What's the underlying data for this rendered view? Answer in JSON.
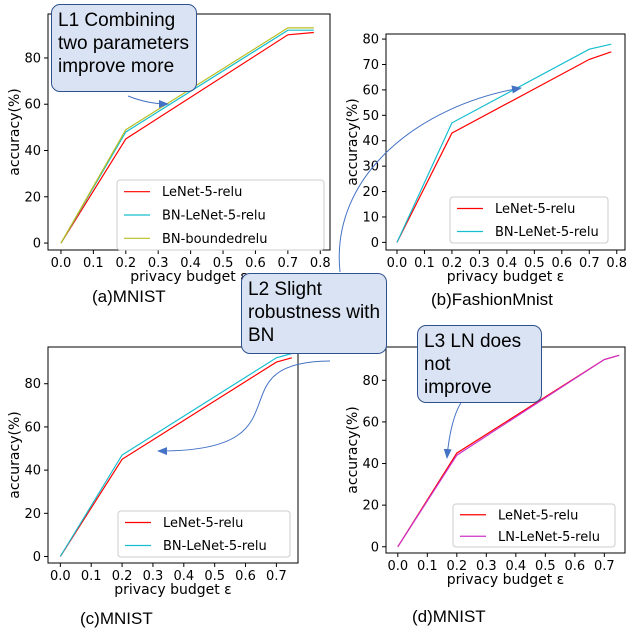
{
  "chart_data": [
    {
      "type": "line",
      "xlabel": "privacy budget ε",
      "ylabel": "accuracy(%)",
      "caption": "(a)MNIST",
      "xlim": [
        -0.04,
        0.83
      ],
      "ylim": [
        -3,
        99
      ],
      "xticks": [
        0.0,
        0.1,
        0.2,
        0.3,
        0.4,
        0.5,
        0.6,
        0.7,
        0.8
      ],
      "xtick_labels": [
        "0.0",
        "0.1",
        "0.2",
        "0.3",
        "0.4",
        "0.5",
        "0.6",
        "0.7",
        "0.8"
      ],
      "yticks": [
        0,
        20,
        40,
        60,
        80
      ],
      "ytick_labels": [
        "0",
        "20",
        "40",
        "60",
        "80"
      ],
      "legend": "bottom-right",
      "series": [
        {
          "name": "LeNet-5-relu",
          "color": "#ff0000",
          "x": [
            0.0,
            0.2,
            0.7,
            0.78
          ],
          "y": [
            0,
            45,
            90,
            91
          ]
        },
        {
          "name": "BN-LeNet-5-relu",
          "color": "#17becf",
          "x": [
            0.0,
            0.2,
            0.7,
            0.78
          ],
          "y": [
            0,
            48,
            92,
            92
          ]
        },
        {
          "name": "BN-boundedrelu",
          "color": "#bcbd22",
          "x": [
            0.0,
            0.2,
            0.7,
            0.78
          ],
          "y": [
            0,
            49,
            93,
            93
          ]
        }
      ]
    },
    {
      "type": "line",
      "xlabel": "privacy budget ε",
      "ylabel": "accuracy(%)",
      "caption": "(b)FashionMnist",
      "xlim": [
        -0.04,
        0.83
      ],
      "ylim": [
        -3,
        82
      ],
      "xticks": [
        0.0,
        0.1,
        0.2,
        0.3,
        0.4,
        0.5,
        0.6,
        0.7,
        0.8
      ],
      "xtick_labels": [
        "0.0",
        "0.1",
        "0.2",
        "0.3",
        "0.4",
        "0.5",
        "0.6",
        "0.7",
        "0.8"
      ],
      "yticks": [
        0,
        10,
        20,
        30,
        40,
        50,
        60,
        70,
        80
      ],
      "ytick_labels": [
        "0",
        "10",
        "20",
        "30",
        "40",
        "50",
        "60",
        "70",
        "80"
      ],
      "legend": "bottom-right",
      "series": [
        {
          "name": "LeNet-5-relu",
          "color": "#ff0000",
          "x": [
            0.0,
            0.2,
            0.7,
            0.78
          ],
          "y": [
            0,
            43,
            72,
            75
          ]
        },
        {
          "name": "BN-LeNet-5-relu",
          "color": "#17becf",
          "x": [
            0.0,
            0.2,
            0.7,
            0.78
          ],
          "y": [
            0,
            47,
            76,
            78
          ]
        }
      ]
    },
    {
      "type": "line",
      "xlabel": "privacy budget ε",
      "ylabel": "accuracy(%)",
      "caption": "(c)MNIST",
      "xlim": [
        -0.04,
        0.77
      ],
      "ylim": [
        -3,
        97
      ],
      "xticks": [
        0.0,
        0.1,
        0.2,
        0.3,
        0.4,
        0.5,
        0.6,
        0.7
      ],
      "xtick_labels": [
        "0.0",
        "0.1",
        "0.2",
        "0.3",
        "0.4",
        "0.5",
        "0.6",
        "0.7"
      ],
      "yticks": [
        0,
        20,
        40,
        60,
        80
      ],
      "ytick_labels": [
        "0",
        "20",
        "40",
        "60",
        "80"
      ],
      "legend": "bottom-right",
      "series": [
        {
          "name": "LeNet-5-relu",
          "color": "#ff0000",
          "x": [
            0.0,
            0.2,
            0.7,
            0.75
          ],
          "y": [
            0,
            45,
            90,
            92
          ]
        },
        {
          "name": "BN-LeNet-5-relu",
          "color": "#17becf",
          "x": [
            0.0,
            0.2,
            0.7,
            0.75
          ],
          "y": [
            0,
            47,
            92,
            94
          ]
        }
      ]
    },
    {
      "type": "line",
      "xlabel": "privacy budget ε",
      "ylabel": "accuracy(%)",
      "caption": "(d)MNIST",
      "xlim": [
        -0.04,
        0.77
      ],
      "ylim": [
        -3,
        96
      ],
      "xticks": [
        0.0,
        0.1,
        0.2,
        0.3,
        0.4,
        0.5,
        0.6,
        0.7
      ],
      "xtick_labels": [
        "0.0",
        "0.1",
        "0.2",
        "0.3",
        "0.4",
        "0.5",
        "0.6",
        "0.7"
      ],
      "yticks": [
        0,
        20,
        40,
        60,
        80
      ],
      "ytick_labels": [
        "0",
        "20",
        "40",
        "60",
        "80"
      ],
      "legend": "bottom-right",
      "series": [
        {
          "name": "LeNet-5-relu",
          "color": "#ff0000",
          "x": [
            0.0,
            0.2,
            0.7,
            0.75
          ],
          "y": [
            0,
            45,
            90,
            92
          ]
        },
        {
          "name": "LN-LeNet-5-relu",
          "color": "#cc33cc",
          "x": [
            0.0,
            0.2,
            0.7,
            0.75
          ],
          "y": [
            0,
            44,
            90,
            92
          ]
        }
      ]
    }
  ],
  "callouts": {
    "l1": [
      "L1 Combining",
      "two parameters",
      "improve more"
    ],
    "l2": [
      "L2 Slight",
      "robustness with",
      "BN"
    ],
    "l3": [
      "L3 LN does",
      "not",
      "improve"
    ]
  },
  "colors": {
    "callout_fill": "#dae3f3",
    "callout_border": "#2f528f",
    "arrow": "#4472c4"
  }
}
